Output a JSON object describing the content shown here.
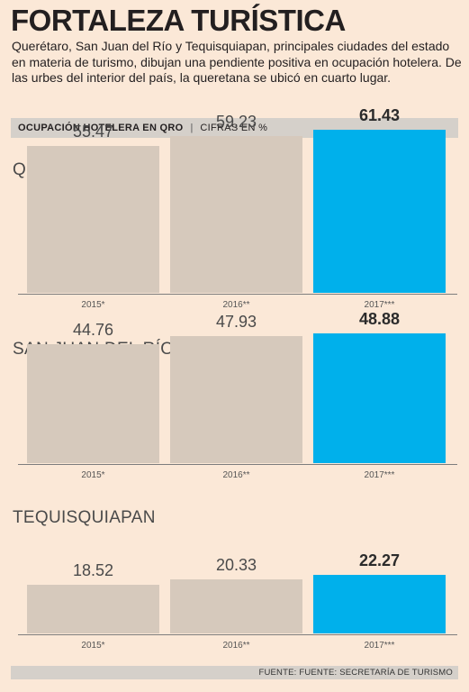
{
  "title": "FORTALEZA TURÍSTICA",
  "subtitle": "Querétaro, San Juan del Río y Tequisquiapan, principales ciudades del estado en materia de turismo, dibujan una pendiente positiva en ocupación hotelera. De las urbes del interior del país, la queretana se ubicó en cuarto lugar.",
  "band": {
    "label": "OCUPACIÓN HOTELERA EN QRO",
    "separator": "|",
    "unit": "CIFRAS EN %"
  },
  "source": "FUENTE: FUENTE: SECRETARÍA DE TURISMO",
  "colors": {
    "bar": "#d6c9bc",
    "highlight": "#00b0eb",
    "background": "#fbe8d7"
  },
  "chart_data": [
    {
      "type": "bar",
      "title": "QUERÉTARO",
      "categories": [
        "2015*",
        "2016**",
        "2017***"
      ],
      "values": [
        55.47,
        59.23,
        61.43
      ],
      "value_labels": [
        "55.47",
        "59.23",
        "61.43"
      ],
      "highlight_index": 2
    },
    {
      "type": "bar",
      "title": "SAN JUAN DEL RÍO",
      "categories": [
        "2015*",
        "2016**",
        "2017***"
      ],
      "values": [
        44.76,
        47.93,
        48.88
      ],
      "value_labels": [
        "44.76",
        "47.93",
        "48.88"
      ],
      "highlight_index": 2
    },
    {
      "type": "bar",
      "title": "TEQUISQUIAPAN",
      "categories": [
        "2015*",
        "2016**",
        "2017***"
      ],
      "values": [
        18.52,
        20.33,
        22.27
      ],
      "value_labels": [
        "18.52",
        "20.33",
        "22.27"
      ],
      "highlight_index": 2
    }
  ]
}
